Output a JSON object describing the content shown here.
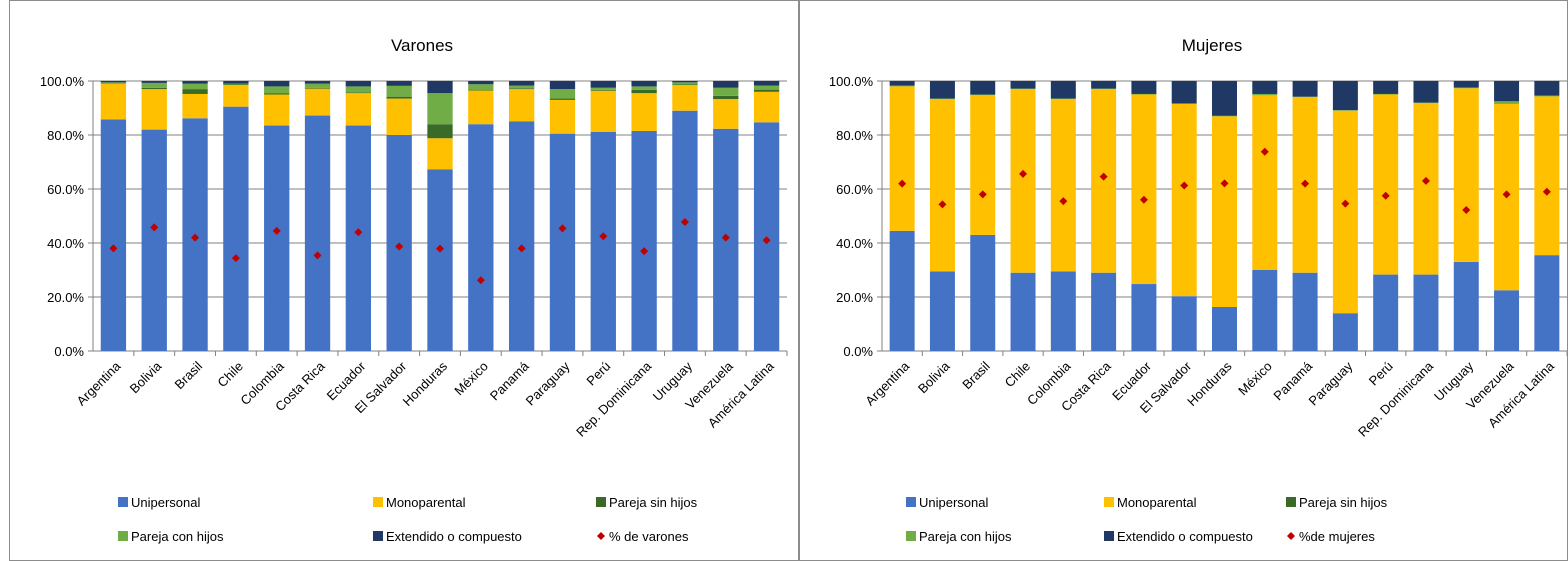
{
  "chart_data": [
    {
      "type": "bar",
      "stacked": true,
      "title": "Varones",
      "categories": [
        "Argentina",
        "Bolivia",
        "Brasil",
        "Chile",
        "Colombia",
        "Costa Rica",
        "Ecuador",
        "El Salvador",
        "Honduras",
        "México",
        "Panamá",
        "Paraguay",
        "Perú",
        "Rep. Dominicana",
        "Uruguay",
        "Venezuela",
        "América Latina"
      ],
      "ylim": [
        0,
        100
      ],
      "yticks": [
        "0.0%",
        "20.0%",
        "40.0%",
        "60.0%",
        "80.0%",
        "100.0%"
      ],
      "grid": true,
      "legend_position": "bottom",
      "series": [
        {
          "name": "Unipersonal",
          "color": "#4472c4",
          "values": [
            85.8,
            82.0,
            86.2,
            90.5,
            83.5,
            87.2,
            83.5,
            80.0,
            67.3,
            84.0,
            85.0,
            80.5,
            81.2,
            81.5,
            89.0,
            82.3,
            84.7
          ]
        },
        {
          "name": "Monoparental",
          "color": "#ffc000",
          "values": [
            13.2,
            15.0,
            9.0,
            8.0,
            11.5,
            10.0,
            12.0,
            13.5,
            11.5,
            12.5,
            12.0,
            12.5,
            15.2,
            14.0,
            9.5,
            11.0,
            11.3
          ]
        },
        {
          "name": "Pareja sin hijos",
          "color": "#3a6b26",
          "values": [
            0.2,
            0.5,
            1.8,
            0.2,
            0.5,
            0.3,
            0.3,
            0.7,
            5.2,
            0.3,
            0.3,
            0.5,
            0.3,
            1.2,
            0.2,
            1.2,
            0.8
          ]
        },
        {
          "name": "Pareja con hijos",
          "color": "#70ad47",
          "values": [
            0.3,
            1.8,
            2.0,
            0.3,
            2.5,
            1.5,
            2.2,
            4.0,
            11.5,
            2.0,
            1.0,
            3.5,
            0.8,
            1.3,
            0.8,
            3.0,
            1.5
          ]
        },
        {
          "name": "Extendido o compuesto",
          "color": "#1f3864",
          "values": [
            0.5,
            0.7,
            1.0,
            1.0,
            2.0,
            1.0,
            2.0,
            1.8,
            4.5,
            1.2,
            1.7,
            3.0,
            2.5,
            2.0,
            0.5,
            2.5,
            1.7
          ]
        }
      ],
      "markers": {
        "name": "% de varones",
        "color": "#c00000",
        "values": [
          38.0,
          45.8,
          42.0,
          34.4,
          44.5,
          35.4,
          44.0,
          38.7,
          37.9,
          26.2,
          38.0,
          45.4,
          42.5,
          37.0,
          47.8,
          42.0,
          41.0
        ]
      }
    },
    {
      "type": "bar",
      "stacked": true,
      "title": "Mujeres",
      "categories": [
        "Argentina",
        "Bolivia",
        "Brasil",
        "Chile",
        "Colombia",
        "Costa Rica",
        "Ecuador",
        "El Salvador",
        "Honduras",
        "México",
        "Panamá",
        "Paraguay",
        "Perú",
        "Rep. Dominicana",
        "Uruguay",
        "Venezuela",
        "América Latina"
      ],
      "ylim": [
        0,
        100
      ],
      "yticks": [
        "0.0%",
        "20.0%",
        "40.0%",
        "60.0%",
        "80.0%",
        "100.0%"
      ],
      "grid": true,
      "legend_position": "bottom",
      "series": [
        {
          "name": "Unipersonal",
          "color": "#4472c4",
          "values": [
            44.5,
            29.5,
            43.0,
            29.0,
            29.5,
            29.0,
            24.8,
            20.3,
            16.3,
            30.0,
            29.0,
            14.0,
            28.3,
            28.3,
            33.0,
            22.5,
            35.5
          ]
        },
        {
          "name": "Monoparental",
          "color": "#ffc000",
          "values": [
            53.5,
            63.8,
            51.8,
            68.0,
            63.8,
            68.0,
            70.2,
            71.2,
            70.6,
            64.7,
            65.0,
            75.0,
            66.7,
            63.5,
            64.3,
            69.0,
            58.8
          ]
        },
        {
          "name": "Pareja sin hijos",
          "color": "#3a6b26",
          "values": [
            0,
            0,
            0,
            0,
            0,
            0,
            0,
            0,
            0,
            0,
            0,
            0,
            0,
            0,
            0,
            0,
            0
          ]
        },
        {
          "name": "Pareja con hijos",
          "color": "#70ad47",
          "values": [
            0.3,
            0.2,
            0.2,
            0.2,
            0.2,
            0.2,
            0.2,
            0.2,
            0.2,
            0.5,
            0.2,
            0.2,
            0.2,
            0.2,
            0.3,
            1.0,
            0.3
          ]
        },
        {
          "name": "Extendido o compuesto",
          "color": "#1f3864",
          "values": [
            1.7,
            6.5,
            5.0,
            2.8,
            6.5,
            2.8,
            4.8,
            8.3,
            12.9,
            4.8,
            5.8,
            10.8,
            4.8,
            8.0,
            2.4,
            7.5,
            5.4
          ]
        }
      ],
      "markers": {
        "name": "%de mujeres",
        "color": "#c00000",
        "values": [
          62.0,
          54.3,
          58.0,
          65.6,
          55.5,
          64.6,
          56.0,
          61.3,
          62.1,
          73.8,
          62.0,
          54.6,
          57.5,
          63.0,
          52.2,
          58.0,
          59.0
        ]
      }
    }
  ]
}
